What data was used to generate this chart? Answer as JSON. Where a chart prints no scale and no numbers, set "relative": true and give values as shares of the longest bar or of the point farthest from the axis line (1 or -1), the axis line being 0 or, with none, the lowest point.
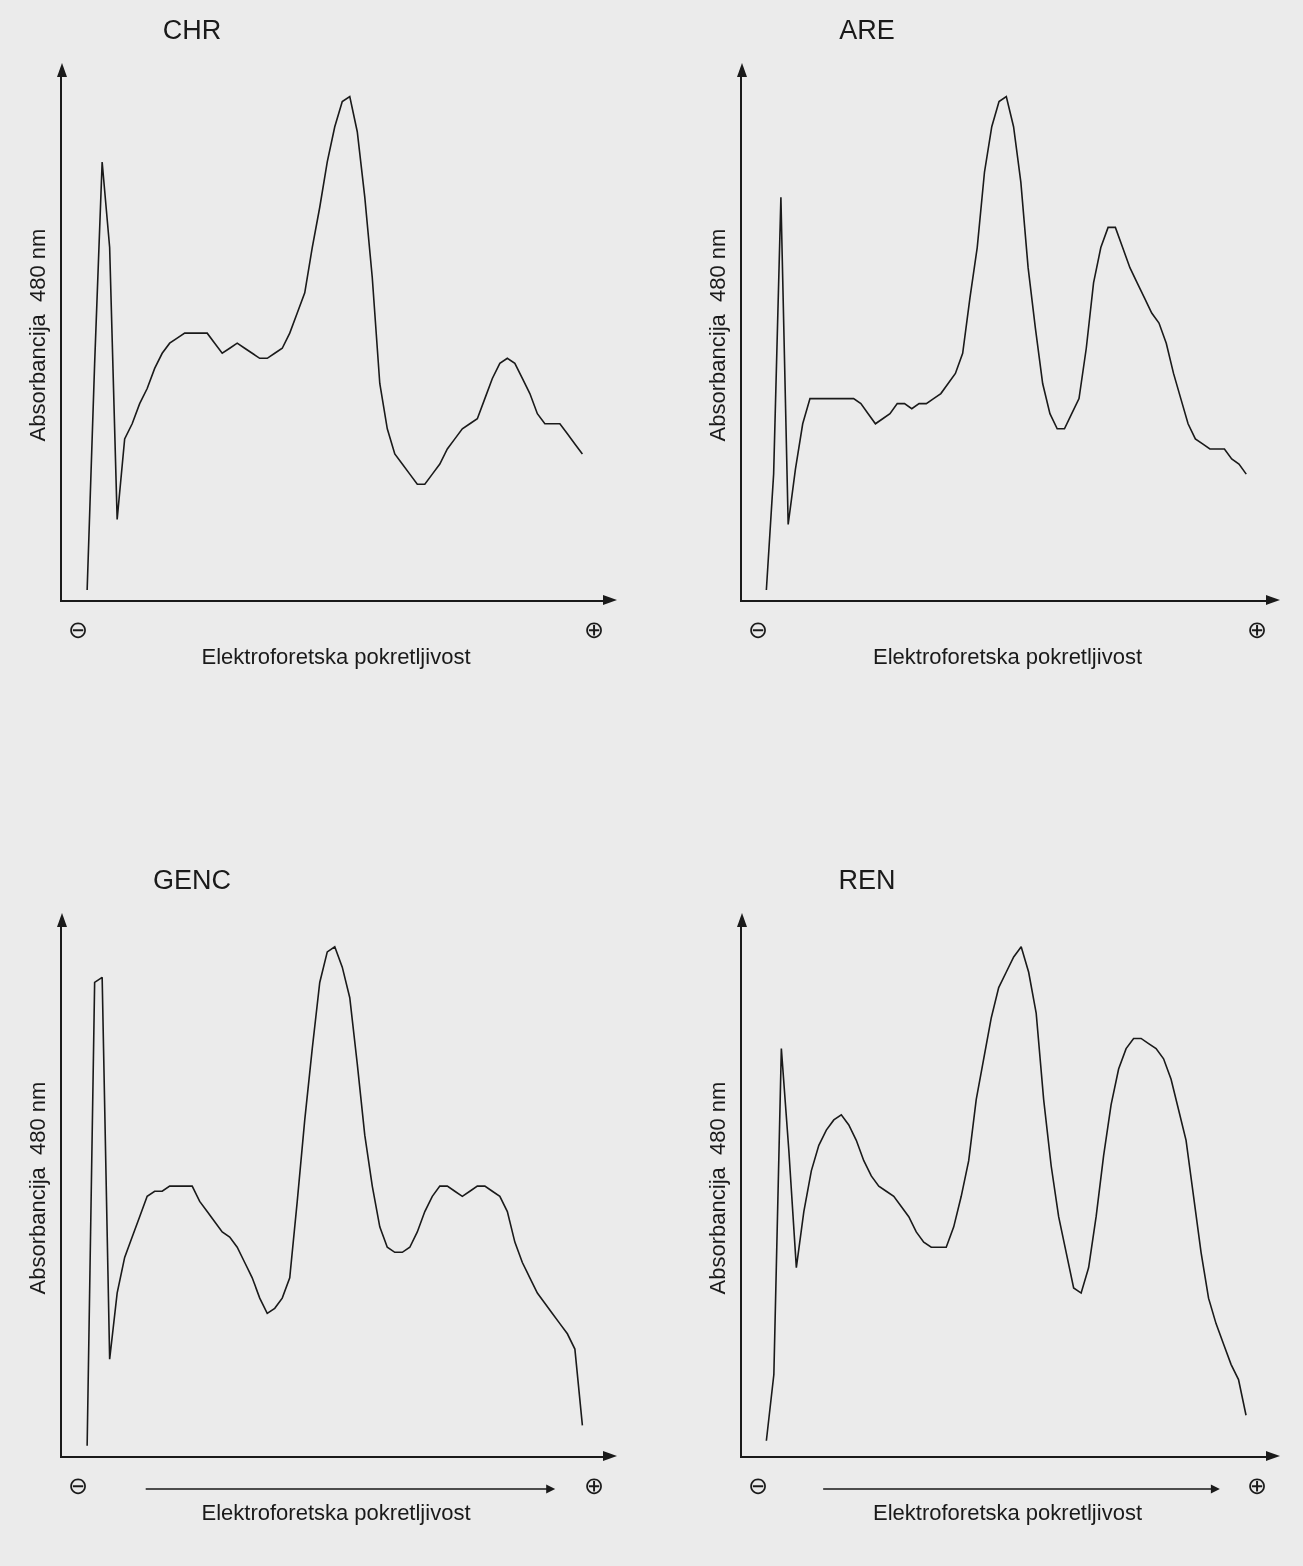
{
  "chart_data": [
    {
      "type": "line",
      "relative": true,
      "title": "CHR",
      "ylabel": "Absorbancija  480 nm",
      "xlabel": "Elektroforetska pokretljivost",
      "annotations": [
        "⊖",
        "⊕"
      ],
      "categories": [
        null,
        null,
        null,
        null,
        null,
        null,
        null,
        null,
        null,
        null,
        null,
        null,
        null,
        null,
        null,
        null,
        null,
        null,
        null,
        null,
        null,
        null,
        null,
        null,
        null,
        null,
        null,
        null,
        null,
        null,
        null,
        null,
        null,
        null,
        null,
        null,
        null,
        null,
        null,
        null,
        null,
        null,
        null,
        null,
        null,
        null,
        null,
        null,
        null,
        null,
        null,
        null,
        null,
        null,
        null,
        null,
        null,
        null,
        null,
        null,
        null,
        null,
        null,
        null,
        null,
        null,
        null
      ],
      "series": [
        {
          "color": "#1a1a1a",
          "values": [
            0.02,
            0.47,
            0.87,
            0.7,
            0.16,
            0.32,
            0.35,
            0.39,
            0.42,
            0.46,
            0.49,
            0.51,
            0.52,
            0.53,
            0.53,
            0.53,
            0.53,
            0.51,
            0.49,
            0.5,
            0.51,
            0.5,
            0.49,
            0.48,
            0.48,
            0.49,
            0.5,
            0.53,
            0.57,
            0.61,
            0.7,
            0.78,
            0.87,
            0.94,
            0.99,
            1,
            0.93,
            0.8,
            0.64,
            0.43,
            0.34,
            0.29,
            0.27,
            0.25,
            0.23,
            0.23,
            0.25,
            0.27,
            0.3,
            0.32,
            0.34,
            0.35,
            0.36,
            0.4,
            0.44,
            0.47,
            0.48,
            0.47,
            0.44,
            0.41,
            0.37,
            0.35,
            0.35,
            0.35,
            0.33,
            0.31,
            0.29
          ]
        }
      ]
    },
    {
      "type": "line",
      "relative": true,
      "title": "ARE",
      "ylabel": "Absorbancija  480 nm",
      "xlabel": "Elektroforetska pokretljivost",
      "annotations": [
        "⊖",
        "⊕"
      ],
      "categories": [
        null,
        null,
        null,
        null,
        null,
        null,
        null,
        null,
        null,
        null,
        null,
        null,
        null,
        null,
        null,
        null,
        null,
        null,
        null,
        null,
        null,
        null,
        null,
        null,
        null,
        null,
        null,
        null,
        null,
        null,
        null,
        null,
        null,
        null,
        null,
        null,
        null,
        null,
        null,
        null,
        null,
        null,
        null,
        null,
        null,
        null,
        null,
        null,
        null,
        null,
        null,
        null,
        null,
        null,
        null,
        null,
        null,
        null,
        null,
        null,
        null,
        null,
        null,
        null,
        null,
        null,
        null
      ],
      "series": [
        {
          "color": "#1a1a1a",
          "values": [
            0.02,
            0.25,
            0.8,
            0.15,
            0.26,
            0.35,
            0.4,
            0.4,
            0.4,
            0.4,
            0.4,
            0.4,
            0.4,
            0.39,
            0.37,
            0.35,
            0.36,
            0.37,
            0.39,
            0.39,
            0.38,
            0.39,
            0.39,
            0.4,
            0.41,
            0.43,
            0.45,
            0.49,
            0.6,
            0.7,
            0.85,
            0.94,
            0.99,
            1,
            0.94,
            0.83,
            0.66,
            0.54,
            0.43,
            0.37,
            0.34,
            0.34,
            0.37,
            0.4,
            0.5,
            0.63,
            0.7,
            0.74,
            0.74,
            0.7,
            0.66,
            0.63,
            0.6,
            0.57,
            0.55,
            0.51,
            0.45,
            0.4,
            0.35,
            0.32,
            0.31,
            0.3,
            0.3,
            0.3,
            0.28,
            0.27,
            0.25
          ]
        }
      ]
    },
    {
      "type": "line",
      "relative": true,
      "title": "GENC",
      "ylabel": "Absorbancija  480 nm",
      "xlabel": "Elektroforetska pokretljivost",
      "annotations": [
        "⊖",
        "⊕"
      ],
      "categories": [
        null,
        null,
        null,
        null,
        null,
        null,
        null,
        null,
        null,
        null,
        null,
        null,
        null,
        null,
        null,
        null,
        null,
        null,
        null,
        null,
        null,
        null,
        null,
        null,
        null,
        null,
        null,
        null,
        null,
        null,
        null,
        null,
        null,
        null,
        null,
        null,
        null,
        null,
        null,
        null,
        null,
        null,
        null,
        null,
        null,
        null,
        null,
        null,
        null,
        null,
        null,
        null,
        null,
        null,
        null,
        null,
        null,
        null,
        null,
        null,
        null,
        null,
        null,
        null,
        null,
        null,
        null
      ],
      "series": [
        {
          "color": "#1a1a1a",
          "values": [
            0.02,
            0.93,
            0.94,
            0.19,
            0.32,
            0.39,
            0.43,
            0.47,
            0.51,
            0.52,
            0.52,
            0.53,
            0.53,
            0.53,
            0.53,
            0.5,
            0.48,
            0.46,
            0.44,
            0.43,
            0.41,
            0.38,
            0.35,
            0.31,
            0.28,
            0.29,
            0.31,
            0.35,
            0.5,
            0.66,
            0.8,
            0.93,
            0.99,
            1,
            0.96,
            0.9,
            0.77,
            0.63,
            0.53,
            0.45,
            0.41,
            0.4,
            0.4,
            0.41,
            0.44,
            0.48,
            0.51,
            0.53,
            0.53,
            0.52,
            0.51,
            0.52,
            0.53,
            0.53,
            0.52,
            0.51,
            0.48,
            0.42,
            0.38,
            0.35,
            0.32,
            0.3,
            0.28,
            0.26,
            0.24,
            0.21,
            0.06
          ]
        }
      ]
    },
    {
      "type": "line",
      "relative": true,
      "title": "REN",
      "ylabel": "Absorbancija  480 nm",
      "xlabel": "Elektroforetska pokretljivost",
      "annotations": [
        "⊖",
        "⊕"
      ],
      "categories": [
        null,
        null,
        null,
        null,
        null,
        null,
        null,
        null,
        null,
        null,
        null,
        null,
        null,
        null,
        null,
        null,
        null,
        null,
        null,
        null,
        null,
        null,
        null,
        null,
        null,
        null,
        null,
        null,
        null,
        null,
        null,
        null,
        null,
        null,
        null,
        null,
        null,
        null,
        null,
        null,
        null,
        null,
        null,
        null,
        null,
        null,
        null,
        null,
        null,
        null,
        null,
        null,
        null,
        null,
        null,
        null,
        null,
        null,
        null,
        null,
        null,
        null,
        null,
        null,
        null
      ],
      "series": [
        {
          "color": "#1a1a1a",
          "values": [
            0.03,
            0.16,
            0.8,
            0.6,
            0.37,
            0.48,
            0.56,
            0.61,
            0.64,
            0.66,
            0.67,
            0.65,
            0.62,
            0.58,
            0.55,
            0.53,
            0.52,
            0.51,
            0.49,
            0.47,
            0.44,
            0.42,
            0.41,
            0.41,
            0.41,
            0.45,
            0.51,
            0.58,
            0.7,
            0.78,
            0.86,
            0.92,
            0.95,
            0.98,
            1,
            0.95,
            0.87,
            0.7,
            0.57,
            0.47,
            0.4,
            0.33,
            0.32,
            0.37,
            0.47,
            0.59,
            0.69,
            0.76,
            0.8,
            0.82,
            0.82,
            0.81,
            0.8,
            0.78,
            0.74,
            0.68,
            0.62,
            0.51,
            0.4,
            0.31,
            0.26,
            0.22,
            0.18,
            0.15,
            0.08
          ]
        }
      ]
    }
  ]
}
